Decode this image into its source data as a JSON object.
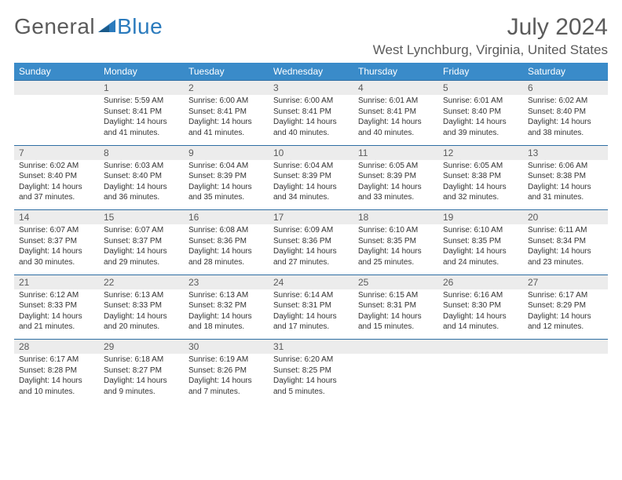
{
  "logo": {
    "text1": "General",
    "text2": "Blue"
  },
  "title": "July 2024",
  "location": "West Lynchburg, Virginia, United States",
  "colors": {
    "header_bg": "#3a8bc9",
    "header_text": "#ffffff",
    "daynum_bg": "#ececec",
    "border_top": "#2e6ea3",
    "body_text": "#333333",
    "muted_text": "#5b5b5b"
  },
  "weekdays": [
    "Sunday",
    "Monday",
    "Tuesday",
    "Wednesday",
    "Thursday",
    "Friday",
    "Saturday"
  ],
  "weeks": [
    {
      "nums": [
        "",
        "1",
        "2",
        "3",
        "4",
        "5",
        "6"
      ],
      "cells": [
        null,
        {
          "sr": "Sunrise: 5:59 AM",
          "ss": "Sunset: 8:41 PM",
          "d1": "Daylight: 14 hours",
          "d2": "and 41 minutes."
        },
        {
          "sr": "Sunrise: 6:00 AM",
          "ss": "Sunset: 8:41 PM",
          "d1": "Daylight: 14 hours",
          "d2": "and 41 minutes."
        },
        {
          "sr": "Sunrise: 6:00 AM",
          "ss": "Sunset: 8:41 PM",
          "d1": "Daylight: 14 hours",
          "d2": "and 40 minutes."
        },
        {
          "sr": "Sunrise: 6:01 AM",
          "ss": "Sunset: 8:41 PM",
          "d1": "Daylight: 14 hours",
          "d2": "and 40 minutes."
        },
        {
          "sr": "Sunrise: 6:01 AM",
          "ss": "Sunset: 8:40 PM",
          "d1": "Daylight: 14 hours",
          "d2": "and 39 minutes."
        },
        {
          "sr": "Sunrise: 6:02 AM",
          "ss": "Sunset: 8:40 PM",
          "d1": "Daylight: 14 hours",
          "d2": "and 38 minutes."
        }
      ]
    },
    {
      "nums": [
        "7",
        "8",
        "9",
        "10",
        "11",
        "12",
        "13"
      ],
      "cells": [
        {
          "sr": "Sunrise: 6:02 AM",
          "ss": "Sunset: 8:40 PM",
          "d1": "Daylight: 14 hours",
          "d2": "and 37 minutes."
        },
        {
          "sr": "Sunrise: 6:03 AM",
          "ss": "Sunset: 8:40 PM",
          "d1": "Daylight: 14 hours",
          "d2": "and 36 minutes."
        },
        {
          "sr": "Sunrise: 6:04 AM",
          "ss": "Sunset: 8:39 PM",
          "d1": "Daylight: 14 hours",
          "d2": "and 35 minutes."
        },
        {
          "sr": "Sunrise: 6:04 AM",
          "ss": "Sunset: 8:39 PM",
          "d1": "Daylight: 14 hours",
          "d2": "and 34 minutes."
        },
        {
          "sr": "Sunrise: 6:05 AM",
          "ss": "Sunset: 8:39 PM",
          "d1": "Daylight: 14 hours",
          "d2": "and 33 minutes."
        },
        {
          "sr": "Sunrise: 6:05 AM",
          "ss": "Sunset: 8:38 PM",
          "d1": "Daylight: 14 hours",
          "d2": "and 32 minutes."
        },
        {
          "sr": "Sunrise: 6:06 AM",
          "ss": "Sunset: 8:38 PM",
          "d1": "Daylight: 14 hours",
          "d2": "and 31 minutes."
        }
      ]
    },
    {
      "nums": [
        "14",
        "15",
        "16",
        "17",
        "18",
        "19",
        "20"
      ],
      "cells": [
        {
          "sr": "Sunrise: 6:07 AM",
          "ss": "Sunset: 8:37 PM",
          "d1": "Daylight: 14 hours",
          "d2": "and 30 minutes."
        },
        {
          "sr": "Sunrise: 6:07 AM",
          "ss": "Sunset: 8:37 PM",
          "d1": "Daylight: 14 hours",
          "d2": "and 29 minutes."
        },
        {
          "sr": "Sunrise: 6:08 AM",
          "ss": "Sunset: 8:36 PM",
          "d1": "Daylight: 14 hours",
          "d2": "and 28 minutes."
        },
        {
          "sr": "Sunrise: 6:09 AM",
          "ss": "Sunset: 8:36 PM",
          "d1": "Daylight: 14 hours",
          "d2": "and 27 minutes."
        },
        {
          "sr": "Sunrise: 6:10 AM",
          "ss": "Sunset: 8:35 PM",
          "d1": "Daylight: 14 hours",
          "d2": "and 25 minutes."
        },
        {
          "sr": "Sunrise: 6:10 AM",
          "ss": "Sunset: 8:35 PM",
          "d1": "Daylight: 14 hours",
          "d2": "and 24 minutes."
        },
        {
          "sr": "Sunrise: 6:11 AM",
          "ss": "Sunset: 8:34 PM",
          "d1": "Daylight: 14 hours",
          "d2": "and 23 minutes."
        }
      ]
    },
    {
      "nums": [
        "21",
        "22",
        "23",
        "24",
        "25",
        "26",
        "27"
      ],
      "cells": [
        {
          "sr": "Sunrise: 6:12 AM",
          "ss": "Sunset: 8:33 PM",
          "d1": "Daylight: 14 hours",
          "d2": "and 21 minutes."
        },
        {
          "sr": "Sunrise: 6:13 AM",
          "ss": "Sunset: 8:33 PM",
          "d1": "Daylight: 14 hours",
          "d2": "and 20 minutes."
        },
        {
          "sr": "Sunrise: 6:13 AM",
          "ss": "Sunset: 8:32 PM",
          "d1": "Daylight: 14 hours",
          "d2": "and 18 minutes."
        },
        {
          "sr": "Sunrise: 6:14 AM",
          "ss": "Sunset: 8:31 PM",
          "d1": "Daylight: 14 hours",
          "d2": "and 17 minutes."
        },
        {
          "sr": "Sunrise: 6:15 AM",
          "ss": "Sunset: 8:31 PM",
          "d1": "Daylight: 14 hours",
          "d2": "and 15 minutes."
        },
        {
          "sr": "Sunrise: 6:16 AM",
          "ss": "Sunset: 8:30 PM",
          "d1": "Daylight: 14 hours",
          "d2": "and 14 minutes."
        },
        {
          "sr": "Sunrise: 6:17 AM",
          "ss": "Sunset: 8:29 PM",
          "d1": "Daylight: 14 hours",
          "d2": "and 12 minutes."
        }
      ]
    },
    {
      "nums": [
        "28",
        "29",
        "30",
        "31",
        "",
        "",
        ""
      ],
      "cells": [
        {
          "sr": "Sunrise: 6:17 AM",
          "ss": "Sunset: 8:28 PM",
          "d1": "Daylight: 14 hours",
          "d2": "and 10 minutes."
        },
        {
          "sr": "Sunrise: 6:18 AM",
          "ss": "Sunset: 8:27 PM",
          "d1": "Daylight: 14 hours",
          "d2": "and 9 minutes."
        },
        {
          "sr": "Sunrise: 6:19 AM",
          "ss": "Sunset: 8:26 PM",
          "d1": "Daylight: 14 hours",
          "d2": "and 7 minutes."
        },
        {
          "sr": "Sunrise: 6:20 AM",
          "ss": "Sunset: 8:25 PM",
          "d1": "Daylight: 14 hours",
          "d2": "and 5 minutes."
        },
        null,
        null,
        null
      ]
    }
  ]
}
